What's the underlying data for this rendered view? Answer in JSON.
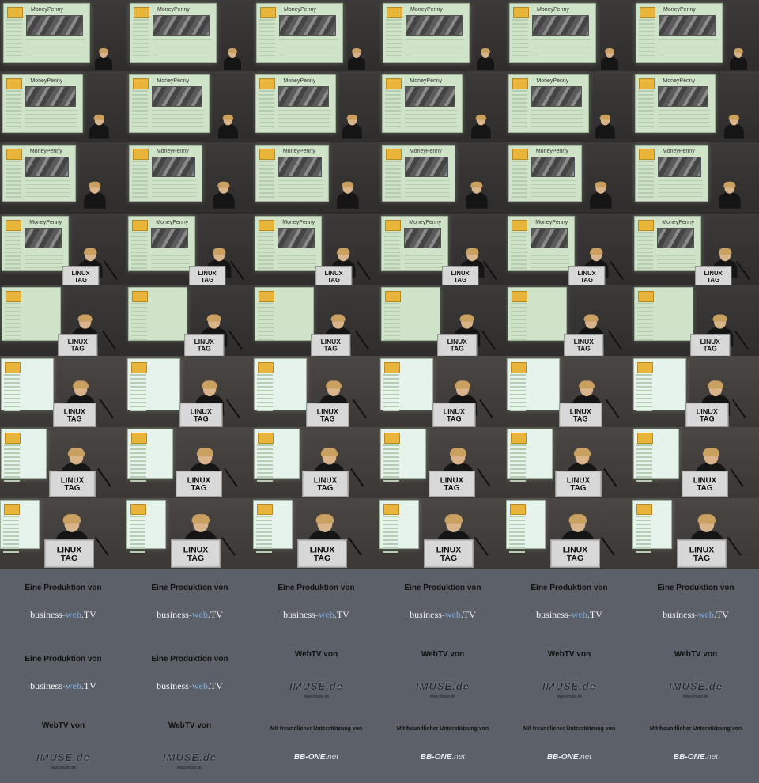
{
  "screen_text": {
    "app_title": "MoneyPenny",
    "logo_line1": "LINUX",
    "logo_line2": "TAG"
  },
  "podium_sign": "LINUX\nTAG",
  "credits": {
    "production_title": "Eine Produktion von",
    "brand_part1": "business-",
    "brand_part2": "web",
    "brand_part3": ".TV",
    "webtv_title": "WebTV von",
    "imuse_logo": "IMUSE.de",
    "imuse_url": "www.imuse.de",
    "support_title": "Mit freundlicher Unterstützung von",
    "bbone_main": "BB-ONE",
    "bbone_net": ".net"
  },
  "tiles": [
    "talk",
    "talk",
    "talk",
    "talk",
    "talk",
    "talk",
    "talk",
    "talk",
    "talk",
    "talk",
    "talk",
    "talk",
    "talk",
    "talk",
    "talk",
    "talk",
    "talk",
    "talk",
    "talk",
    "talk",
    "talk",
    "talk",
    "talk",
    "talk",
    "talk",
    "talk",
    "talk",
    "talk",
    "talk",
    "talk",
    "talk",
    "talk",
    "talk",
    "talk",
    "talk",
    "talk",
    "talk",
    "talk",
    "talk",
    "talk",
    "talk",
    "talk",
    "talk",
    "talk",
    "talk",
    "talk",
    "talk",
    "talk",
    "production",
    "production",
    "production",
    "production",
    "production",
    "production",
    "production",
    "production",
    "webtv",
    "webtv",
    "webtv",
    "webtv",
    "webtv",
    "webtv",
    "support",
    "support",
    "support",
    "support"
  ]
}
